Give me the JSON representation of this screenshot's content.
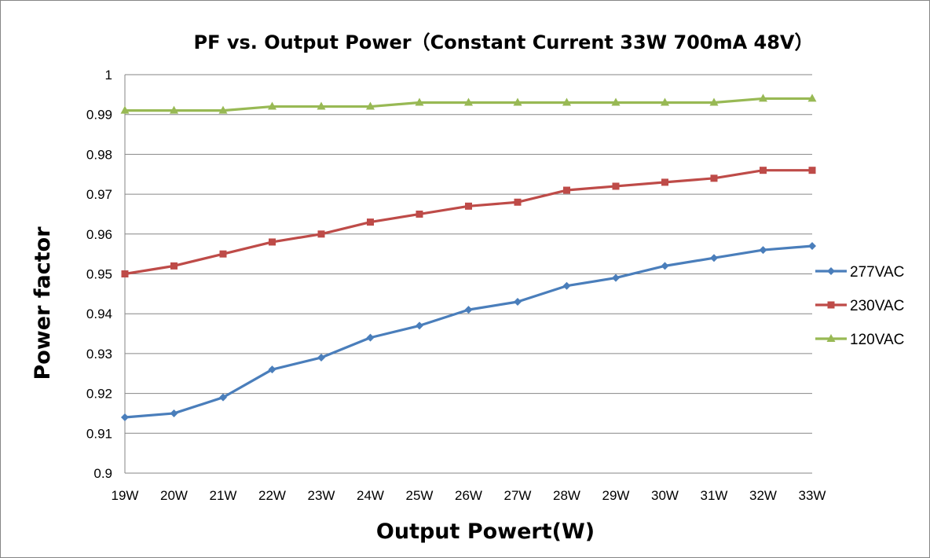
{
  "chart_data": {
    "type": "line",
    "title": "PF vs. Output Power（Constant Current 33W 700mA 48V）",
    "xlabel": "Output Powert(W)",
    "ylabel": "Power factor",
    "categories": [
      "19W",
      "20W",
      "21W",
      "22W",
      "23W",
      "24W",
      "25W",
      "26W",
      "27W",
      "28W",
      "29W",
      "30W",
      "31W",
      "32W",
      "33W"
    ],
    "ylim": [
      0.9,
      1
    ],
    "ytick_labels": [
      "0.9",
      "0.91",
      "0.92",
      "0.93",
      "0.94",
      "0.95",
      "0.96",
      "0.97",
      "0.98",
      "0.99",
      "1"
    ],
    "grid": "horizontal",
    "legend_position": "right",
    "series": [
      {
        "name": "277VAC",
        "color": "#4a7ebb",
        "marker": "diamond",
        "values": [
          0.914,
          0.915,
          0.919,
          0.926,
          0.929,
          0.934,
          0.937,
          0.941,
          0.943,
          0.947,
          0.949,
          0.952,
          0.954,
          0.956,
          0.957
        ]
      },
      {
        "name": "230VAC",
        "color": "#be4b48",
        "marker": "square",
        "values": [
          0.95,
          0.952,
          0.955,
          0.958,
          0.96,
          0.963,
          0.965,
          0.967,
          0.968,
          0.971,
          0.972,
          0.973,
          0.974,
          0.976,
          0.976
        ]
      },
      {
        "name": "120VAC",
        "color": "#98b954",
        "marker": "triangle",
        "values": [
          0.991,
          0.991,
          0.991,
          0.992,
          0.992,
          0.992,
          0.993,
          0.993,
          0.993,
          0.993,
          0.993,
          0.993,
          0.993,
          0.994,
          0.994
        ]
      }
    ]
  }
}
